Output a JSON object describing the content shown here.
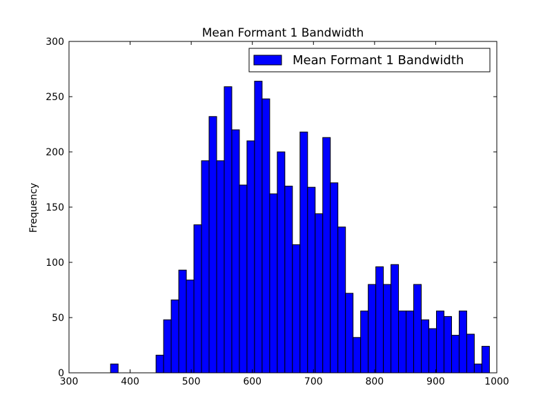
{
  "chart_data": {
    "type": "bar",
    "title": "Mean Formant 1 Bandwidth",
    "xlabel": "",
    "ylabel": "Frequency",
    "xlim": [
      300,
      1000
    ],
    "ylim": [
      0,
      300
    ],
    "xticks": [
      300,
      400,
      500,
      600,
      700,
      800,
      900,
      1000
    ],
    "yticks": [
      0,
      50,
      100,
      150,
      200,
      250,
      300
    ],
    "bin_width": 12.4,
    "bin_starts": [
      368,
      380.4,
      392.8,
      405.2,
      417.6,
      430,
      442.4,
      454.8,
      467.2,
      479.6,
      492,
      504.4,
      516.8,
      529.2,
      541.6,
      554,
      566.4,
      578.8,
      591.2,
      603.6,
      616,
      628.4,
      640.8,
      653.2,
      665.6,
      678,
      690.4,
      702.8,
      715.2,
      727.6,
      740,
      752.4,
      764.8,
      777.2,
      789.6,
      802,
      814.4,
      826.8,
      839.2,
      851.6,
      864,
      876.4,
      888.8,
      901.2,
      913.6,
      926,
      938.4,
      950.8,
      963.2,
      975.6
    ],
    "values": [
      8,
      0,
      0,
      0,
      0,
      0,
      16,
      48,
      66,
      93,
      84,
      134,
      192,
      232,
      192,
      259,
      220,
      170,
      210,
      264,
      248,
      162,
      200,
      169,
      116,
      218,
      168,
      144,
      213,
      172,
      132,
      72,
      32,
      56,
      80,
      96,
      80,
      98,
      56,
      56,
      80,
      48,
      40,
      56,
      51,
      34,
      56,
      35,
      8,
      24
    ],
    "series": [
      {
        "name": "Mean Formant 1 Bandwidth",
        "values": [
          8,
          0,
          0,
          0,
          0,
          0,
          16,
          48,
          66,
          93,
          84,
          134,
          192,
          232,
          192,
          259,
          220,
          170,
          210,
          264,
          248,
          162,
          200,
          169,
          116,
          218,
          168,
          144,
          213,
          172,
          132,
          72,
          32,
          56,
          80,
          96,
          80,
          98,
          56,
          56,
          80,
          48,
          40,
          56,
          51,
          34,
          56,
          35,
          8,
          24
        ]
      }
    ],
    "bar_color": "#0000ff",
    "edge_color": "#000000",
    "legend_position": "top-right",
    "grid": false
  }
}
